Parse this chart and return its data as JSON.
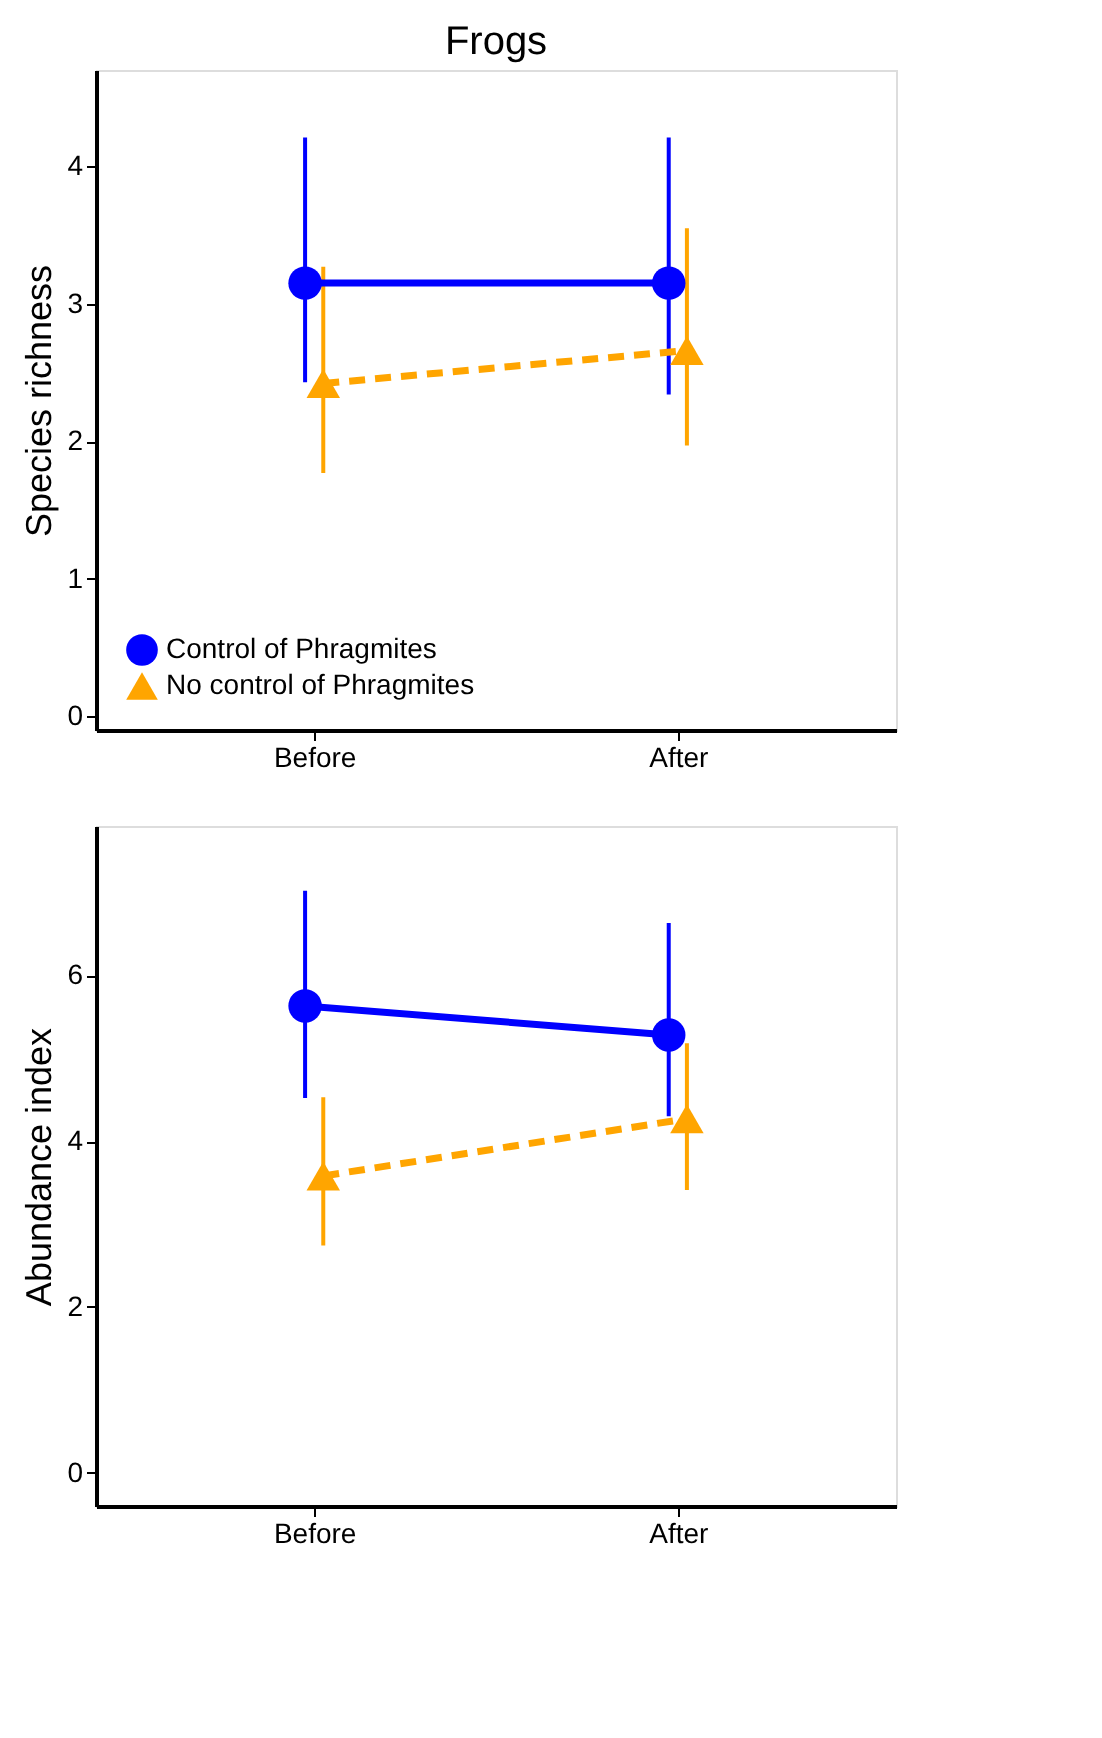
{
  "chart_data": [
    {
      "type": "line",
      "title": "Frogs",
      "ylabel": "Species richness",
      "categories": [
        "Before",
        "After"
      ],
      "ylim": [
        -0.1,
        4.7
      ],
      "yticks": [
        0,
        1,
        2,
        3,
        4
      ],
      "grid": false,
      "legend": "bottom left",
      "series": [
        {
          "name": "Control of Phragmites",
          "color": "#0000ff",
          "marker": "circle",
          "line_style": "solid",
          "values": [
            3.15,
            3.15
          ],
          "errors": [
            [
              2.43,
              4.21
            ],
            [
              2.34,
              4.21
            ]
          ]
        },
        {
          "name": "No control of Phragmites",
          "color": "#ffa500",
          "marker": "triangle",
          "line_style": "dashed",
          "values": [
            2.42,
            2.66
          ],
          "errors": [
            [
              1.77,
              3.27
            ],
            [
              1.97,
              3.55
            ]
          ]
        }
      ]
    },
    {
      "type": "line",
      "ylabel": "Abundance index",
      "categories": [
        "Before",
        "After"
      ],
      "ylim": [
        -0.4,
        7.8
      ],
      "yticks": [
        0,
        2,
        4,
        6
      ],
      "grid": false,
      "series": [
        {
          "color": "#0000ff",
          "marker": "circle",
          "line_style": "solid",
          "values": [
            5.63,
            5.28
          ],
          "errors": [
            [
              4.52,
              7.02
            ],
            [
              4.3,
              6.63
            ]
          ]
        },
        {
          "color": "#ffa500",
          "marker": "triangle",
          "line_style": "dashed",
          "values": [
            3.58,
            4.27
          ],
          "errors": [
            [
              2.74,
              4.53
            ],
            [
              3.41,
              5.18
            ]
          ]
        }
      ]
    }
  ]
}
